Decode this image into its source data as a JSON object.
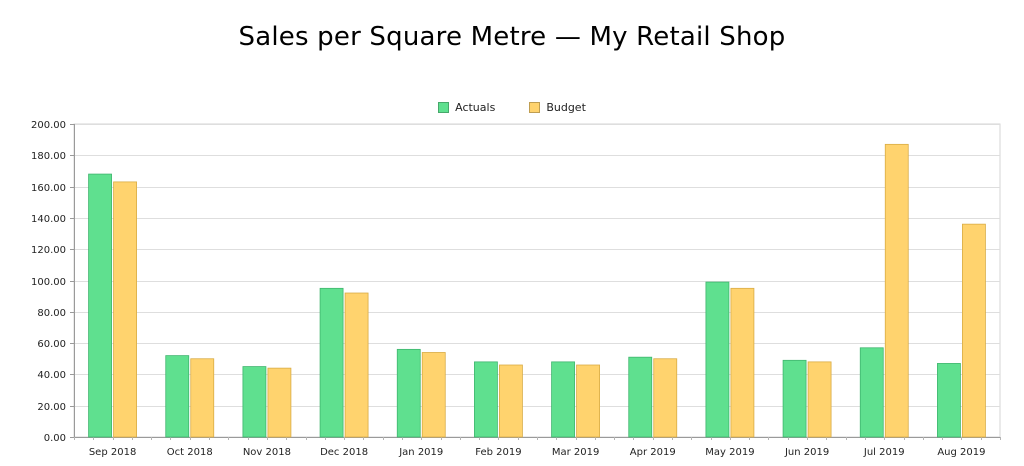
{
  "chart_data": {
    "type": "bar",
    "title": "Sales per Square Metre — My Retail Shop",
    "xlabel": "",
    "ylabel": "",
    "ylim": [
      0,
      200
    ],
    "yticks": [
      "0.00",
      "20.00",
      "40.00",
      "60.00",
      "80.00",
      "100.00",
      "120.00",
      "140.00",
      "160.00",
      "180.00",
      "200.00"
    ],
    "grid": true,
    "legend_position": "top-center",
    "categories": [
      "Sep 2018",
      "Oct 2018",
      "Nov 2018",
      "Dec 2018",
      "Jan 2019",
      "Feb 2019",
      "Mar 2019",
      "Apr 2019",
      "May 2019",
      "Jun 2019",
      "Jul 2019",
      "Aug 2019"
    ],
    "series": [
      {
        "name": "Actuals",
        "color": "#5fe08f",
        "values": [
          168,
          52,
          45,
          95,
          56,
          48,
          48,
          51,
          99,
          49,
          57,
          47
        ]
      },
      {
        "name": "Budget",
        "color": "#ffd36e",
        "values": [
          163,
          50,
          44,
          92,
          54,
          46,
          46,
          50,
          95,
          48,
          187,
          136
        ]
      }
    ]
  }
}
